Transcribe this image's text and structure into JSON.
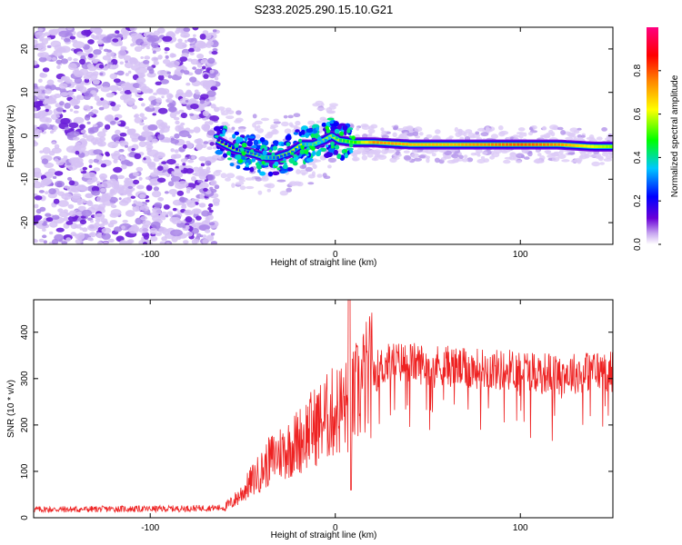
{
  "title": "S233.2025.290.15.10.G21",
  "chart_data": [
    {
      "type": "heatmap",
      "xlabel": "Height of straight line (km)",
      "ylabel": "Frequency (Hz)",
      "xlim": [
        -163,
        150
      ],
      "ylim": [
        -25,
        25
      ],
      "x_ticks": [
        -100,
        0,
        100
      ],
      "y_ticks": [
        -20,
        -10,
        0,
        10,
        20
      ],
      "x_tick_labels": [
        "-100",
        "0",
        "100"
      ],
      "y_tick_labels": [
        "-20",
        "-10",
        "0",
        "10",
        "20"
      ],
      "colorbar": {
        "label": "Normalized spectral amplitude",
        "range": [
          0,
          1
        ],
        "ticks": [
          0.0,
          0.2,
          0.4,
          0.6,
          0.8
        ],
        "tick_labels": [
          "0.0",
          "0.2",
          "0.4",
          "0.6",
          "0.8"
        ],
        "colors": [
          "#ffffff",
          "#6a00d8",
          "#0000ff",
          "#00c8ff",
          "#00ff00",
          "#ffff00",
          "#ff8800",
          "#ff0000",
          "#ff0080"
        ]
      },
      "noise_region_x": [
        -163,
        -64
      ],
      "signal_ridge": {
        "x": [
          -64,
          -55,
          -45,
          -38,
          -32,
          -25,
          -18,
          -12,
          -6,
          -2,
          2,
          10,
          20,
          40,
          60,
          80,
          100,
          120,
          140,
          150
        ],
        "freq": [
          -1,
          -3,
          -4,
          -5,
          -5,
          -4,
          -2,
          -2,
          -1,
          0,
          -1,
          -1.5,
          -1.5,
          -2,
          -2,
          -2,
          -2,
          -2,
          -2.5,
          -2.5
        ],
        "amplitude": [
          0.2,
          0.25,
          0.3,
          0.35,
          0.3,
          0.3,
          0.35,
          0.4,
          0.35,
          0.4,
          0.45,
          0.5,
          0.75,
          0.7,
          0.7,
          0.75,
          0.8,
          0.75,
          0.6,
          0.55
        ]
      }
    },
    {
      "type": "line",
      "xlabel": "Height of straight line (km)",
      "ylabel": "SNR (10 * v/v)",
      "xlim": [
        -163,
        150
      ],
      "ylim": [
        0,
        470
      ],
      "x_ticks": [
        -100,
        0,
        100
      ],
      "y_ticks": [
        0,
        100,
        200,
        300,
        400
      ],
      "x_tick_labels": [
        "-100",
        "0",
        "100"
      ],
      "y_tick_labels": [
        "0",
        "100",
        "200",
        "300",
        "400"
      ],
      "color": "#ee2222",
      "series": [
        {
          "name": "SNR",
          "x": [
            -163,
            -140,
            -120,
            -100,
            -80,
            -60,
            -55,
            -50,
            -45,
            -40,
            -35,
            -30,
            -25,
            -20,
            -15,
            -10,
            -5,
            0,
            5,
            8,
            10,
            15,
            20,
            25,
            30,
            40,
            50,
            60,
            70,
            80,
            90,
            100,
            110,
            120,
            130,
            140,
            150
          ],
          "y": [
            18,
            18,
            19,
            19,
            20,
            22,
            35,
            55,
            80,
            100,
            125,
            140,
            150,
            165,
            185,
            200,
            215,
            230,
            240,
            235,
            255,
            290,
            310,
            325,
            335,
            335,
            330,
            328,
            320,
            322,
            318,
            322,
            315,
            310,
            312,
            318,
            315
          ]
        }
      ]
    }
  ]
}
